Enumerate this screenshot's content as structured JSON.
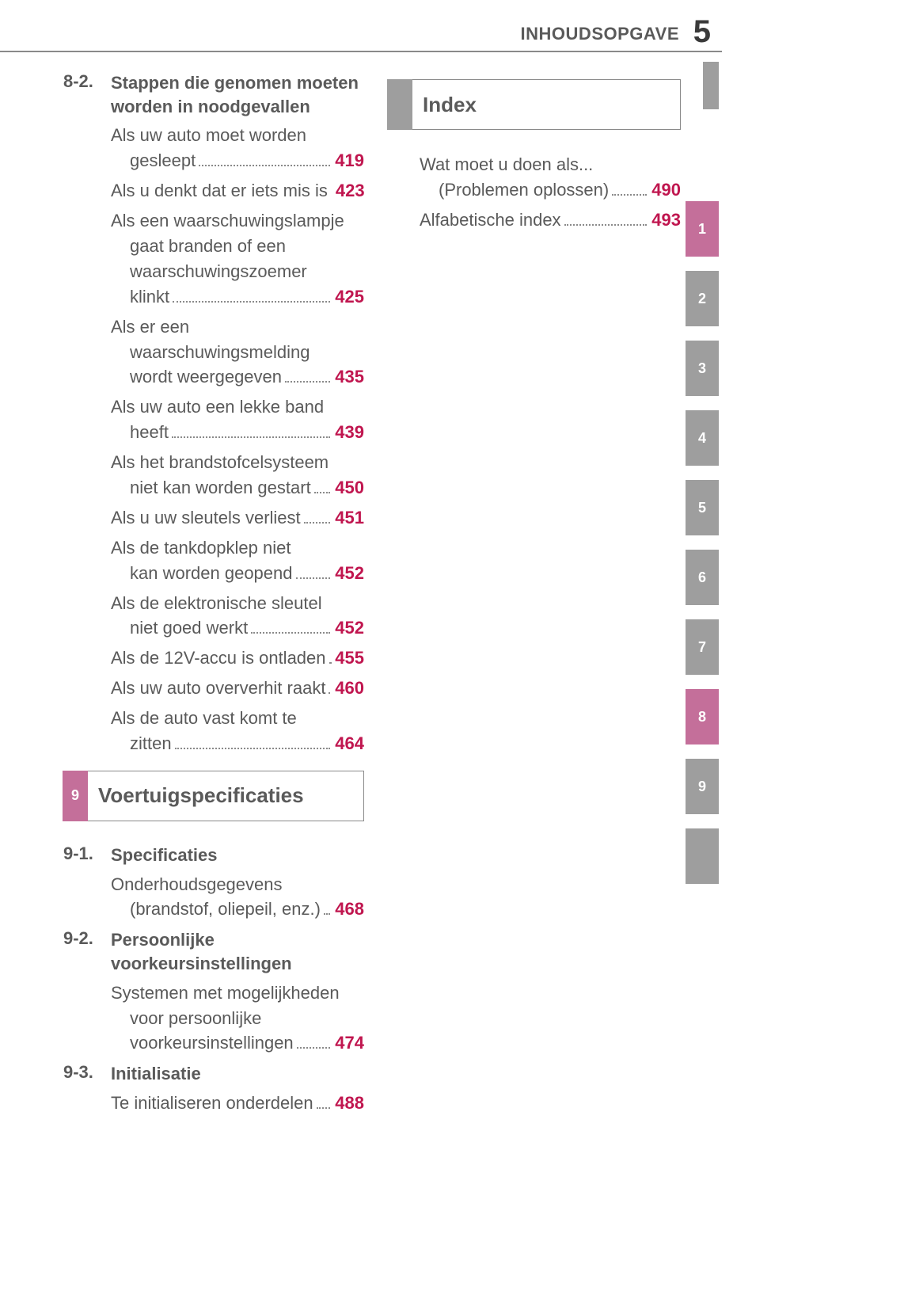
{
  "header": {
    "title": "INHOUDSOPGAVE",
    "page_number": "5",
    "title_color": "#5a5a5a",
    "rule_color": "#8a8a8a"
  },
  "colors": {
    "text": "#5a5a5a",
    "page_ref": "#c0164f",
    "gray_tab": "#9e9e9e",
    "pink_tab": "#c46f9a",
    "background": "#ffffff",
    "dot_leader": "#8a8a8a"
  },
  "typography": {
    "body_fontsize_pt": 16,
    "heading_fontsize_pt": 19,
    "page_number_fontsize_pt": 30,
    "font_family": "Arial"
  },
  "left_column": {
    "subsections": [
      {
        "number": "8-2.",
        "title": "Stappen die genomen moeten worden in noodgevallen",
        "entries": [
          {
            "lines": [
              "Als uw auto moet worden"
            ],
            "last": "gesleept",
            "last_indent": true,
            "page": "419"
          },
          {
            "lines": [],
            "last": "Als u denkt dat er iets mis is",
            "last_indent": false,
            "page": "423"
          },
          {
            "lines": [
              "Als een waarschuwingslampje",
              "gaat branden of een",
              "waarschuwingszoemer"
            ],
            "last": "klinkt",
            "last_indent": true,
            "page": "425"
          },
          {
            "lines": [
              "Als er een",
              "waarschuwingsmelding"
            ],
            "last": "wordt weergegeven",
            "last_indent": true,
            "page": "435"
          },
          {
            "lines": [
              "Als uw auto een lekke band"
            ],
            "last": "heeft",
            "last_indent": true,
            "page": "439"
          },
          {
            "lines": [
              "Als het brandstofcelsysteem"
            ],
            "last": "niet kan worden gestart",
            "last_indent": true,
            "page": "450"
          },
          {
            "lines": [],
            "last": "Als u uw sleutels verliest",
            "last_indent": false,
            "page": "451"
          },
          {
            "lines": [
              "Als de tankdopklep niet"
            ],
            "last": "kan worden geopend",
            "last_indent": true,
            "page": "452"
          },
          {
            "lines": [
              "Als de elektronische sleutel"
            ],
            "last": "niet goed werkt",
            "last_indent": true,
            "page": "452"
          },
          {
            "lines": [],
            "last": "Als de 12V-accu is ontladen",
            "last_indent": false,
            "page": "455"
          },
          {
            "lines": [],
            "last": "Als uw auto oververhit raakt",
            "last_indent": false,
            "page": "460"
          },
          {
            "lines": [
              "Als de auto vast komt te"
            ],
            "last": "zitten",
            "last_indent": true,
            "page": "464"
          }
        ]
      }
    ],
    "chapter_box": {
      "number": "9",
      "label": "Voertuigspecificaties",
      "style": "pink"
    },
    "subsections_after_box": [
      {
        "number": "9-1.",
        "title": "Specificaties",
        "entries": [
          {
            "lines": [
              "Onderhoudsgegevens"
            ],
            "last": "(brandstof, oliepeil, enz.)",
            "last_indent": true,
            "page": "468"
          }
        ]
      },
      {
        "number": "9-2.",
        "title": "Persoonlijke voorkeursinstellingen",
        "entries": [
          {
            "lines": [
              "Systemen met mogelijkheden",
              "voor persoonlijke"
            ],
            "last": "voorkeursinstellingen",
            "last_indent": true,
            "page": "474"
          }
        ]
      },
      {
        "number": "9-3.",
        "title": "Initialisatie",
        "entries": [
          {
            "lines": [],
            "last": "Te initialiseren onderdelen",
            "last_indent": false,
            "page": "488"
          }
        ]
      }
    ]
  },
  "right_column": {
    "chapter_box": {
      "number": "",
      "label": "Index",
      "style": "gray"
    },
    "entries": [
      {
        "lines": [
          "Wat moet u doen als..."
        ],
        "last": "(Problemen oplossen)",
        "last_indent": true,
        "page": "490"
      },
      {
        "lines": [],
        "last": "Alfabetische index",
        "last_indent": false,
        "page": "493"
      }
    ]
  },
  "side_tabs": [
    {
      "label": "1",
      "color": "#c46f9a"
    },
    {
      "label": "2",
      "color": "#9e9e9e"
    },
    {
      "label": "3",
      "color": "#9e9e9e"
    },
    {
      "label": "4",
      "color": "#9e9e9e"
    },
    {
      "label": "5",
      "color": "#9e9e9e"
    },
    {
      "label": "6",
      "color": "#9e9e9e"
    },
    {
      "label": "7",
      "color": "#9e9e9e"
    },
    {
      "label": "8",
      "color": "#c46f9a"
    },
    {
      "label": "9",
      "color": "#9e9e9e"
    },
    {
      "label": "",
      "color": "#9e9e9e"
    }
  ]
}
